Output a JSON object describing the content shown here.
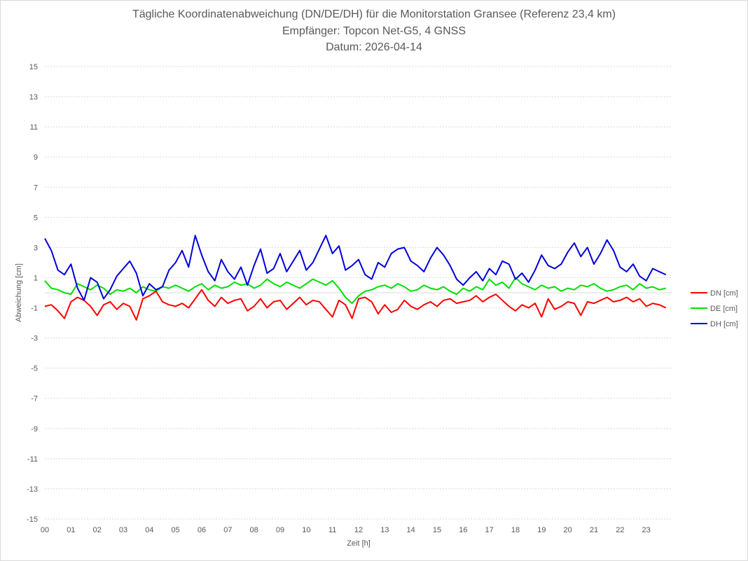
{
  "chart_data": {
    "type": "line",
    "title_lines": [
      "Tägliche Koordinatenabweichung (DN/DE/DH) für die Monitorstation Gransee (Referenz 23,4 km)",
      "Empfänger: Topcon Net-G5, 4 GNSS",
      "Datum: 2026-04-14"
    ],
    "xlabel": "Zeit [h]",
    "ylabel": "Abweichung [cm]",
    "ylim": [
      -15,
      15
    ],
    "yticks": [
      15,
      13,
      11,
      9,
      7,
      5,
      3,
      1,
      -1,
      -3,
      -5,
      -7,
      -9,
      -11,
      -13,
      -15
    ],
    "xlim": [
      0,
      24
    ],
    "xticks": [
      "00",
      "01",
      "02",
      "03",
      "04",
      "05",
      "06",
      "07",
      "08",
      "09",
      "10",
      "11",
      "12",
      "13",
      "14",
      "15",
      "16",
      "17",
      "18",
      "19",
      "20",
      "21",
      "22",
      "23"
    ],
    "grid": true,
    "legend_position": "right",
    "series": [
      {
        "name": "DN [cm]",
        "color": "#ff0000",
        "x": [
          0,
          0.25,
          0.5,
          0.75,
          1,
          1.25,
          1.5,
          1.75,
          2,
          2.25,
          2.5,
          2.75,
          3,
          3.25,
          3.5,
          3.75,
          4,
          4.25,
          4.5,
          4.75,
          5,
          5.25,
          5.5,
          5.75,
          6,
          6.25,
          6.5,
          6.75,
          7,
          7.25,
          7.5,
          7.75,
          8,
          8.25,
          8.5,
          8.75,
          9,
          9.25,
          9.5,
          9.75,
          10,
          10.25,
          10.5,
          10.75,
          11,
          11.25,
          11.5,
          11.75,
          12,
          12.25,
          12.5,
          12.75,
          13,
          13.25,
          13.5,
          13.75,
          14,
          14.25,
          14.5,
          14.75,
          15,
          15.25,
          15.5,
          15.75,
          16,
          16.25,
          16.5,
          16.75,
          17,
          17.25,
          17.5,
          17.75,
          18,
          18.25,
          18.5,
          18.75,
          19,
          19.25,
          19.5,
          19.75,
          20,
          20.25,
          20.5,
          20.75,
          21,
          21.25,
          21.5,
          21.75,
          22,
          22.25,
          22.5,
          22.75,
          23,
          23.25,
          23.5,
          23.75
        ],
        "values": [
          -0.9,
          -0.8,
          -1.2,
          -1.7,
          -0.6,
          -0.3,
          -0.5,
          -0.9,
          -1.5,
          -0.8,
          -0.6,
          -1.1,
          -0.7,
          -0.9,
          -1.8,
          -0.4,
          -0.2,
          0.1,
          -0.6,
          -0.8,
          -0.9,
          -0.7,
          -1.0,
          -0.4,
          0.2,
          -0.5,
          -0.9,
          -0.3,
          -0.7,
          -0.5,
          -0.4,
          -1.2,
          -0.9,
          -0.4,
          -1.0,
          -0.6,
          -0.5,
          -1.1,
          -0.7,
          -0.3,
          -0.8,
          -0.5,
          -0.6,
          -1.1,
          -1.6,
          -0.5,
          -0.8,
          -1.7,
          -0.4,
          -0.3,
          -0.6,
          -1.4,
          -0.8,
          -1.3,
          -1.1,
          -0.5,
          -0.9,
          -1.1,
          -0.8,
          -0.6,
          -0.9,
          -0.5,
          -0.4,
          -0.7,
          -0.6,
          -0.5,
          -0.2,
          -0.6,
          -0.3,
          -0.1,
          -0.5,
          -0.9,
          -1.2,
          -0.8,
          -1.0,
          -0.7,
          -1.6,
          -0.4,
          -1.1,
          -0.9,
          -0.6,
          -0.7,
          -1.5,
          -0.6,
          -0.7,
          -0.5,
          -0.3,
          -0.6,
          -0.5,
          -0.3,
          -0.6,
          -0.4,
          -0.9,
          -0.7,
          -0.8,
          -1.0
        ]
      },
      {
        "name": "DE [cm]",
        "color": "#00e000",
        "x": [
          0,
          0.25,
          0.5,
          0.75,
          1,
          1.25,
          1.5,
          1.75,
          2,
          2.25,
          2.5,
          2.75,
          3,
          3.25,
          3.5,
          3.75,
          4,
          4.25,
          4.5,
          4.75,
          5,
          5.25,
          5.5,
          5.75,
          6,
          6.25,
          6.5,
          6.75,
          7,
          7.25,
          7.5,
          7.75,
          8,
          8.25,
          8.5,
          8.75,
          9,
          9.25,
          9.5,
          9.75,
          10,
          10.25,
          10.5,
          10.75,
          11,
          11.25,
          11.5,
          11.75,
          12,
          12.25,
          12.5,
          12.75,
          13,
          13.25,
          13.5,
          13.75,
          14,
          14.25,
          14.5,
          14.75,
          15,
          15.25,
          15.5,
          15.75,
          16,
          16.25,
          16.5,
          16.75,
          17,
          17.25,
          17.5,
          17.75,
          18,
          18.25,
          18.5,
          18.75,
          19,
          19.25,
          19.5,
          19.75,
          20,
          20.25,
          20.5,
          20.75,
          21,
          21.25,
          21.5,
          21.75,
          22,
          22.25,
          22.5,
          22.75,
          23,
          23.25,
          23.5,
          23.75
        ],
        "values": [
          0.8,
          0.3,
          0.2,
          0.0,
          -0.1,
          0.6,
          0.4,
          0.2,
          0.5,
          0.3,
          -0.1,
          0.2,
          0.1,
          0.3,
          0.0,
          0.4,
          0.2,
          0.1,
          0.4,
          0.3,
          0.5,
          0.3,
          0.1,
          0.4,
          0.6,
          0.2,
          0.5,
          0.3,
          0.4,
          0.7,
          0.5,
          0.6,
          0.3,
          0.5,
          0.9,
          0.6,
          0.4,
          0.7,
          0.5,
          0.3,
          0.6,
          0.9,
          0.7,
          0.5,
          0.8,
          0.3,
          -0.3,
          -0.7,
          -0.2,
          0.1,
          0.2,
          0.4,
          0.5,
          0.3,
          0.6,
          0.4,
          0.1,
          0.2,
          0.5,
          0.3,
          0.2,
          0.4,
          0.1,
          -0.1,
          0.3,
          0.1,
          0.4,
          0.2,
          0.9,
          0.5,
          0.7,
          0.3,
          1.0,
          0.6,
          0.4,
          0.2,
          0.5,
          0.3,
          0.4,
          0.1,
          0.3,
          0.2,
          0.5,
          0.4,
          0.6,
          0.3,
          0.1,
          0.2,
          0.4,
          0.5,
          0.2,
          0.6,
          0.3,
          0.4,
          0.2,
          0.3
        ]
      },
      {
        "name": "DH [cm]",
        "color": "#0000dd",
        "x": [
          0,
          0.25,
          0.5,
          0.75,
          1,
          1.25,
          1.5,
          1.75,
          2,
          2.25,
          2.5,
          2.75,
          3,
          3.25,
          3.5,
          3.75,
          4,
          4.25,
          4.5,
          4.75,
          5,
          5.25,
          5.5,
          5.75,
          6,
          6.25,
          6.5,
          6.75,
          7,
          7.25,
          7.5,
          7.75,
          8,
          8.25,
          8.5,
          8.75,
          9,
          9.25,
          9.5,
          9.75,
          10,
          10.25,
          10.5,
          10.75,
          11,
          11.25,
          11.5,
          11.75,
          12,
          12.25,
          12.5,
          12.75,
          13,
          13.25,
          13.5,
          13.75,
          14,
          14.25,
          14.5,
          14.75,
          15,
          15.25,
          15.5,
          15.75,
          16,
          16.25,
          16.5,
          16.75,
          17,
          17.25,
          17.5,
          17.75,
          18,
          18.25,
          18.5,
          18.75,
          19,
          19.25,
          19.5,
          19.75,
          20,
          20.25,
          20.5,
          20.75,
          21,
          21.25,
          21.5,
          21.75,
          22,
          22.25,
          22.5,
          22.75,
          23,
          23.25,
          23.5,
          23.75
        ],
        "values": [
          3.6,
          2.8,
          1.5,
          1.2,
          1.9,
          0.3,
          -0.5,
          1.0,
          0.7,
          -0.4,
          0.2,
          1.1,
          1.6,
          2.1,
          1.3,
          -0.2,
          0.6,
          0.2,
          0.4,
          1.5,
          2.0,
          2.8,
          1.7,
          3.8,
          2.5,
          1.4,
          0.8,
          2.2,
          1.4,
          0.9,
          1.7,
          0.5,
          1.8,
          2.9,
          1.3,
          1.6,
          2.6,
          1.4,
          2.1,
          2.8,
          1.5,
          2.0,
          2.9,
          3.8,
          2.6,
          3.1,
          1.5,
          1.8,
          2.2,
          1.2,
          0.9,
          2.0,
          1.7,
          2.6,
          2.9,
          3.0,
          2.1,
          1.8,
          1.4,
          2.3,
          3.0,
          2.5,
          1.8,
          0.9,
          0.5,
          1.0,
          1.4,
          0.8,
          1.6,
          1.2,
          2.1,
          1.9,
          0.9,
          1.3,
          0.7,
          1.5,
          2.5,
          1.8,
          1.6,
          1.9,
          2.7,
          3.3,
          2.4,
          3.0,
          1.9,
          2.6,
          3.5,
          2.8,
          1.7,
          1.4,
          1.9,
          1.1,
          0.8,
          1.6,
          1.4,
          1.2
        ]
      }
    ]
  }
}
